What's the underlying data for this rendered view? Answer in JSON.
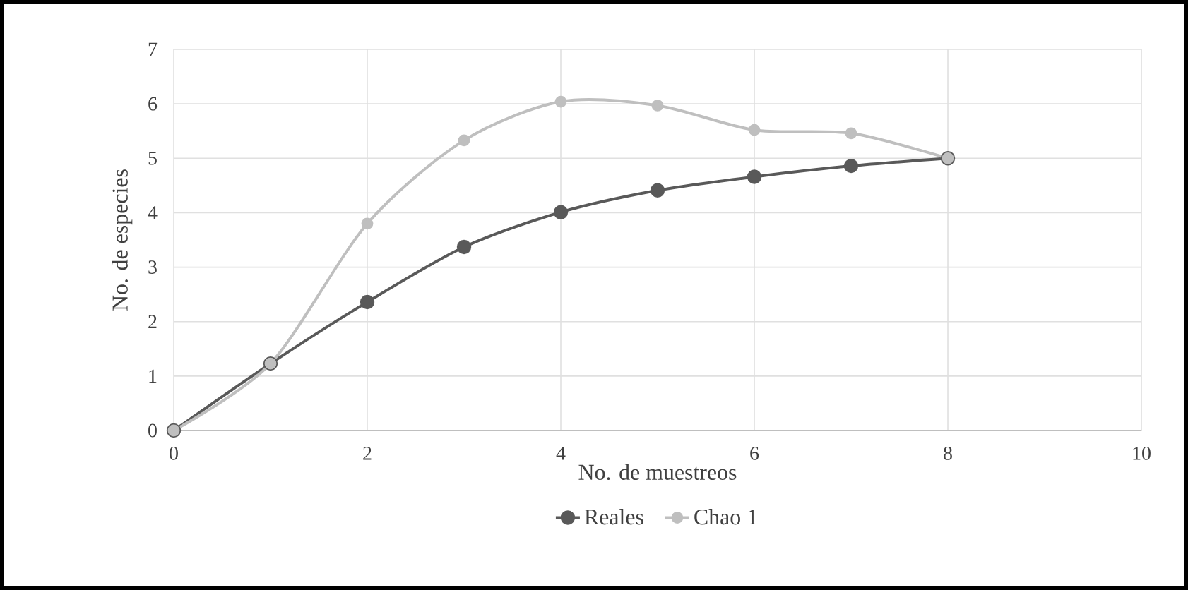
{
  "chart_data": {
    "type": "line",
    "xlabel": "No. de muestreos",
    "ylabel": "No.  de especies",
    "x": [
      0,
      1,
      2,
      3,
      4,
      5,
      6,
      7,
      8
    ],
    "series": [
      {
        "name": "Reales",
        "color": "#595959",
        "values": [
          0,
          1.23,
          2.36,
          3.37,
          4.01,
          4.41,
          4.66,
          4.86,
          5.0
        ]
      },
      {
        "name": "Chao 1",
        "color": "#bfbfbf",
        "values": [
          0,
          1.23,
          3.8,
          5.33,
          6.04,
          5.97,
          5.52,
          5.46,
          5.0
        ]
      }
    ],
    "xlim": [
      0,
      10
    ],
    "xticks": [
      0,
      2,
      4,
      6,
      8,
      10
    ],
    "ylim": [
      0,
      7
    ],
    "yticks": [
      0,
      1,
      2,
      3,
      4,
      5,
      6,
      7
    ],
    "grid": true,
    "legend": "bottom",
    "marker": "circle",
    "line_style": "solid"
  }
}
